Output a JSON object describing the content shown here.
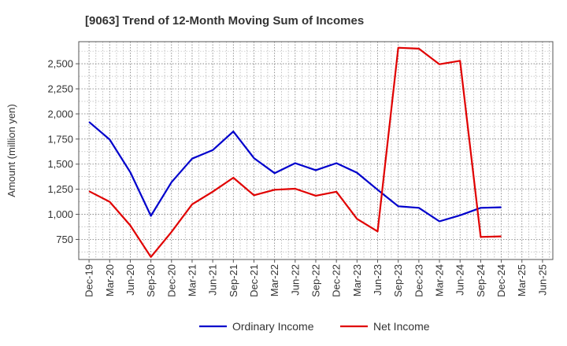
{
  "chart_data": {
    "type": "line",
    "title": "[9063]  Trend of 12-Month Moving Sum of Incomes",
    "xlabel": "",
    "ylabel": "Amount (million yen)",
    "ylim": [
      550,
      2720
    ],
    "yticks": [
      750,
      1000,
      1250,
      1500,
      1750,
      2000,
      2250,
      2500
    ],
    "ytick_labels": [
      "750",
      "1,000",
      "1,250",
      "1,500",
      "1,750",
      "2,000",
      "2,250",
      "2,500"
    ],
    "x": [
      "Dec-19",
      "Mar-20",
      "Jun-20",
      "Sep-20",
      "Dec-20",
      "Mar-21",
      "Jun-21",
      "Sep-21",
      "Dec-21",
      "Mar-22",
      "Jun-22",
      "Sep-22",
      "Dec-22",
      "Mar-23",
      "Jun-23",
      "Sep-23",
      "Dec-23",
      "Mar-24",
      "Jun-24",
      "Sep-24",
      "Dec-24",
      "Mar-25",
      "Jun-25"
    ],
    "grid": true,
    "legend_position": "bottom-center",
    "series": [
      {
        "name": "Ordinary Income",
        "color": "#0000cc",
        "values": [
          1920,
          1745,
          1420,
          985,
          1320,
          1555,
          1640,
          1825,
          1560,
          1410,
          1510,
          1440,
          1510,
          1415,
          1245,
          1080,
          1065,
          930,
          990,
          1065,
          1070,
          null,
          null
        ]
      },
      {
        "name": "Net Income",
        "color": "#e00000",
        "values": [
          1230,
          1125,
          890,
          575,
          825,
          1100,
          1225,
          1365,
          1190,
          1245,
          1255,
          1185,
          1225,
          955,
          830,
          2660,
          2650,
          2495,
          2530,
          775,
          780,
          null,
          null
        ]
      }
    ]
  }
}
